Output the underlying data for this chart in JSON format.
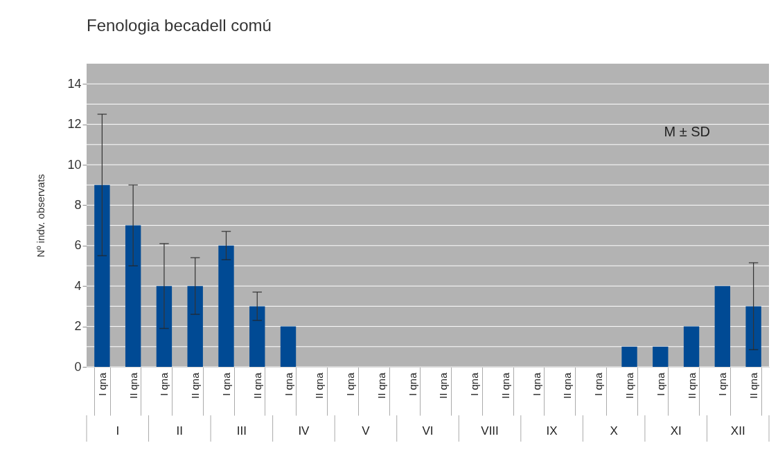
{
  "chart_data": {
    "type": "bar",
    "title": "Fenologia becadell comú",
    "ylabel": "Nº indv. observats",
    "categories": [
      "I qna",
      "II qna",
      "I qna",
      "II qna",
      "I qna",
      "II qna",
      "I qna",
      "II qna",
      "I qna",
      "II qna",
      "I qna",
      "II qna",
      "I qna",
      "II qna",
      "I qna",
      "II qna",
      "I qna",
      "II qna",
      "I qna",
      "II qna",
      "I qna",
      "II qna"
    ],
    "values": [
      9,
      7,
      4,
      4,
      6,
      3,
      2,
      0,
      0,
      0,
      0,
      0,
      0,
      0,
      0,
      0,
      0,
      1,
      1,
      2,
      4,
      3
    ],
    "errors": [
      3.5,
      2,
      2.1,
      1.4,
      0.7,
      0.7,
      null,
      null,
      null,
      null,
      null,
      null,
      null,
      null,
      null,
      null,
      null,
      null,
      null,
      null,
      null,
      2.15
    ],
    "color": "#004a94",
    "annotations": [
      "M ± SD",
      "I",
      "II",
      "III",
      "IV",
      "V",
      "VI",
      "VIII",
      "IX",
      "X",
      "XI",
      "XII"
    ],
    "ylim": [
      0,
      15
    ],
    "yticks": [
      0,
      {
        "value": 1,
        "label": null
      },
      2,
      {
        "value": 3,
        "label": null
      },
      4,
      {
        "value": 5,
        "label": null
      },
      6,
      {
        "value": 7,
        "label": null
      },
      8,
      {
        "value": 9,
        "label": null
      },
      10,
      {
        "value": 11,
        "label": null
      },
      12,
      {
        "value": 13,
        "label": null
      },
      14
    ],
    "grid": true
  }
}
